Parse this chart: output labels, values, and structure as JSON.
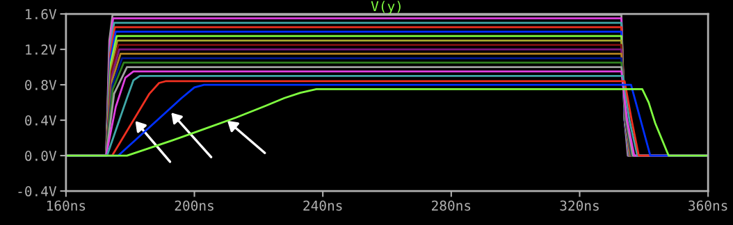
{
  "chart_data": {
    "type": "line",
    "title": "V(y)",
    "xlim": [
      160,
      360
    ],
    "ylim": [
      -0.4,
      1.6
    ],
    "xticks": [
      {
        "value": 160,
        "label": "160ns"
      },
      {
        "value": 200,
        "label": "200ns"
      },
      {
        "value": 240,
        "label": "240ns"
      },
      {
        "value": 280,
        "label": "280ns"
      },
      {
        "value": 320,
        "label": "320ns"
      },
      {
        "value": 360,
        "label": "360ns"
      }
    ],
    "yticks": [
      {
        "value": -0.4,
        "label": "-0.4V"
      },
      {
        "value": 0.0,
        "label": "0.0V"
      },
      {
        "value": 0.4,
        "label": "0.4V"
      },
      {
        "value": 0.8,
        "label": "0.8V"
      },
      {
        "value": 1.2,
        "label": "1.2V"
      },
      {
        "value": 1.6,
        "label": "1.6V"
      }
    ],
    "grid": false,
    "legend": false,
    "marker": "none",
    "line_style": "solid",
    "series": [
      {
        "color": "#a0a0a0",
        "x": [
          160,
          172.5,
          173.5,
          174.5,
          333,
          334,
          335,
          360
        ],
        "values": [
          0,
          0,
          1.3,
          1.59,
          1.59,
          0.4,
          0,
          0
        ]
      },
      {
        "color": "#e040e0",
        "x": [
          160,
          172.5,
          173.6,
          174.7,
          333,
          334,
          335.2,
          360
        ],
        "values": [
          0,
          0,
          1.25,
          1.55,
          1.55,
          0.4,
          0,
          0
        ]
      },
      {
        "color": "#40a8a8",
        "x": [
          160,
          172.5,
          173.7,
          175,
          333,
          334,
          335.3,
          360
        ],
        "values": [
          0,
          0,
          1.2,
          1.5,
          1.5,
          0.4,
          0,
          0
        ]
      },
      {
        "color": "#f03020",
        "x": [
          160,
          172.5,
          173.8,
          175.2,
          333,
          334.1,
          335.4,
          360
        ],
        "values": [
          0,
          0,
          1.15,
          1.45,
          1.45,
          0.4,
          0,
          0
        ]
      },
      {
        "color": "#0030ff",
        "x": [
          160,
          172.5,
          173.9,
          175.5,
          333,
          334.1,
          335.5,
          360
        ],
        "values": [
          0,
          0,
          1.1,
          1.4,
          1.4,
          0.4,
          0,
          0
        ]
      },
      {
        "color": "#80ff40",
        "x": [
          160,
          172.5,
          174,
          175.8,
          333,
          334.2,
          335.6,
          360
        ],
        "values": [
          0,
          0,
          1.05,
          1.35,
          1.35,
          0.4,
          0,
          0
        ]
      },
      {
        "color": "#a8a830",
        "x": [
          160,
          172.5,
          174.1,
          176,
          333,
          334.2,
          335.7,
          360
        ],
        "values": [
          0,
          0,
          1.0,
          1.3,
          1.3,
          0.4,
          0,
          0
        ]
      },
      {
        "color": "#801010",
        "x": [
          160,
          172.5,
          174.2,
          176.3,
          333,
          334.3,
          335.8,
          360
        ],
        "values": [
          0,
          0,
          0.95,
          1.25,
          1.25,
          0.4,
          0,
          0
        ]
      },
      {
        "color": "#801880",
        "x": [
          160,
          172.5,
          174.3,
          176.6,
          333,
          334.3,
          335.9,
          360
        ],
        "values": [
          0,
          0,
          0.9,
          1.2,
          1.2,
          0.4,
          0,
          0
        ]
      },
      {
        "color": "#b08020",
        "x": [
          160,
          172.5,
          174.4,
          177,
          333,
          334.4,
          336,
          360
        ],
        "values": [
          0,
          0,
          0.85,
          1.15,
          1.15,
          0.4,
          0,
          0
        ]
      },
      {
        "color": "#001890",
        "x": [
          160,
          172.5,
          174.5,
          177.5,
          333,
          334.4,
          336.2,
          360
        ],
        "values": [
          0,
          0,
          0.8,
          1.1,
          1.1,
          0.4,
          0,
          0
        ]
      },
      {
        "color": "#308020",
        "x": [
          160,
          172.5,
          174.6,
          178,
          333,
          334.5,
          336.4,
          360
        ],
        "values": [
          0,
          0,
          0.75,
          1.05,
          1.05,
          0.4,
          0,
          0
        ]
      },
      {
        "color": "#a0a0a0",
        "x": [
          160,
          172.5,
          175,
          179,
          333,
          334.6,
          336.6,
          360
        ],
        "values": [
          0,
          0,
          0.7,
          1.0,
          1.0,
          0.4,
          0,
          0
        ]
      },
      {
        "color": "#e040e0",
        "x": [
          160,
          172.5,
          175.5,
          178.5,
          181,
          333,
          334.8,
          337,
          360
        ],
        "values": [
          0,
          0,
          0.55,
          0.88,
          0.95,
          0.95,
          0.4,
          0,
          0
        ]
      },
      {
        "color": "#40a8a8",
        "x": [
          160,
          172.8,
          179,
          181,
          183,
          333.5,
          335.5,
          338,
          360
        ],
        "values": [
          0,
          0,
          0.65,
          0.85,
          0.9,
          0.9,
          0.4,
          0,
          0
        ]
      },
      {
        "color": "#f03020",
        "x": [
          160,
          174.4,
          186,
          189,
          191,
          334,
          336.2,
          338.4,
          360
        ],
        "values": [
          0,
          0,
          0.7,
          0.82,
          0.84,
          0.84,
          0.4,
          0,
          0
        ]
      },
      {
        "color": "#0030ff",
        "x": [
          160,
          176.3,
          196,
          200,
          203,
          336,
          339,
          342,
          360
        ],
        "values": [
          0,
          0,
          0.65,
          0.77,
          0.8,
          0.8,
          0.4,
          0,
          0
        ]
      },
      {
        "color": "#80ff40",
        "x": [
          160,
          175,
          179,
          193,
          203,
          213,
          222,
          228,
          233,
          238,
          339.5,
          341.5,
          343.5,
          347.7,
          360
        ],
        "values": [
          0,
          0,
          0,
          0.17,
          0.3,
          0.43,
          0.56,
          0.65,
          0.71,
          0.75,
          0.75,
          0.6,
          0.37,
          0,
          0
        ]
      }
    ]
  }
}
